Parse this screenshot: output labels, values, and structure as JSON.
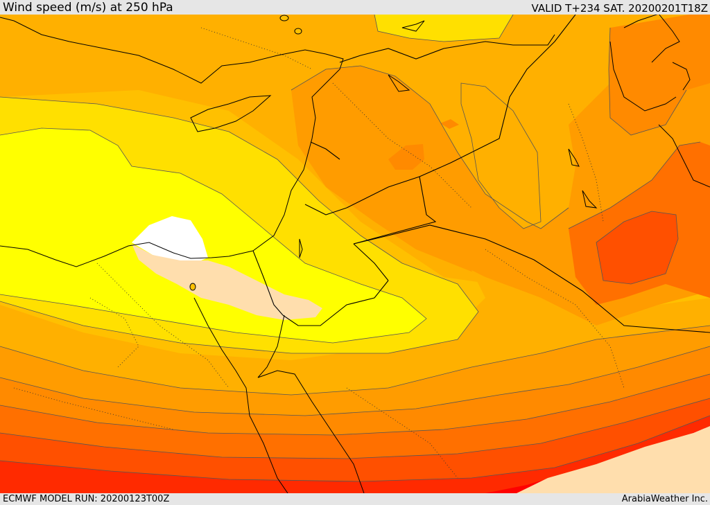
{
  "header": {
    "title": "Wind speed (m/s) at 250 hPa",
    "valid": "VALID T+234 SAT. 20200201T18Z"
  },
  "footer": {
    "model_run": "ECMWF MODEL RUN: 20200123T00Z",
    "credit": "ArabiaWeather Inc."
  },
  "map": {
    "field": "wind speed at 250 hPa",
    "palette": {
      "below_min": "#ffffff",
      "band_a": "#ffdead",
      "band_b": "#ffff00",
      "band_c": "#ffe000",
      "band_d": "#ffc000",
      "band_e": "#ffb000",
      "band_f": "#ff9c00",
      "band_g": "#ff8a00",
      "band_h": "#ff7000",
      "band_i": "#ff5000",
      "band_j": "#ff2a00",
      "band_k": "#ff0000"
    },
    "overlays": [
      "coastlines",
      "country-borders",
      "dotted-terrain-contours"
    ]
  }
}
